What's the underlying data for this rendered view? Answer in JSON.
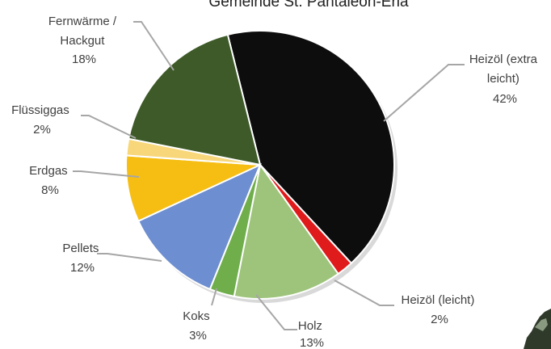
{
  "chart_data": {
    "type": "pie",
    "title": "Gemeinde St. Pantaleon-Erla",
    "slices": [
      {
        "name": "Heizöl (extra leicht)",
        "value": 42,
        "color": "#0d0d0d"
      },
      {
        "name": "Heizöl (leicht)",
        "value": 2,
        "color": "#e01b1b"
      },
      {
        "name": "Holz",
        "value": 13,
        "color": "#9dc47a"
      },
      {
        "name": "Koks",
        "value": 3,
        "color": "#6fae4b"
      },
      {
        "name": "Pellets",
        "value": 12,
        "color": "#6d8ed0"
      },
      {
        "name": "Erdgas",
        "value": 8,
        "color": "#f6be13"
      },
      {
        "name": "Flüssiggas",
        "value": 2,
        "color": "#f8d77a"
      },
      {
        "name": "Fernwärme / Hackgut",
        "value": 18,
        "color": "#3d5a28"
      }
    ]
  },
  "labels": {
    "heizoel_extra": {
      "line1": "Heizöl (extra",
      "line2": "leicht)",
      "pct": "42%"
    },
    "heizoel_leicht": {
      "line1": "Heizöl (leicht)",
      "pct": "2%"
    },
    "holz": {
      "line1": "Holz",
      "pct": "13%"
    },
    "koks": {
      "line1": "Koks",
      "pct": "3%"
    },
    "pellets": {
      "line1": "Pellets",
      "pct": "12%"
    },
    "erdgas": {
      "line1": "Erdgas",
      "pct": "8%"
    },
    "fluessiggas": {
      "line1": "Flüssiggas",
      "pct": "2%"
    },
    "fernwaerme": {
      "line1": "Fernwärme /",
      "line2": "Hackgut",
      "pct": "18%"
    }
  }
}
